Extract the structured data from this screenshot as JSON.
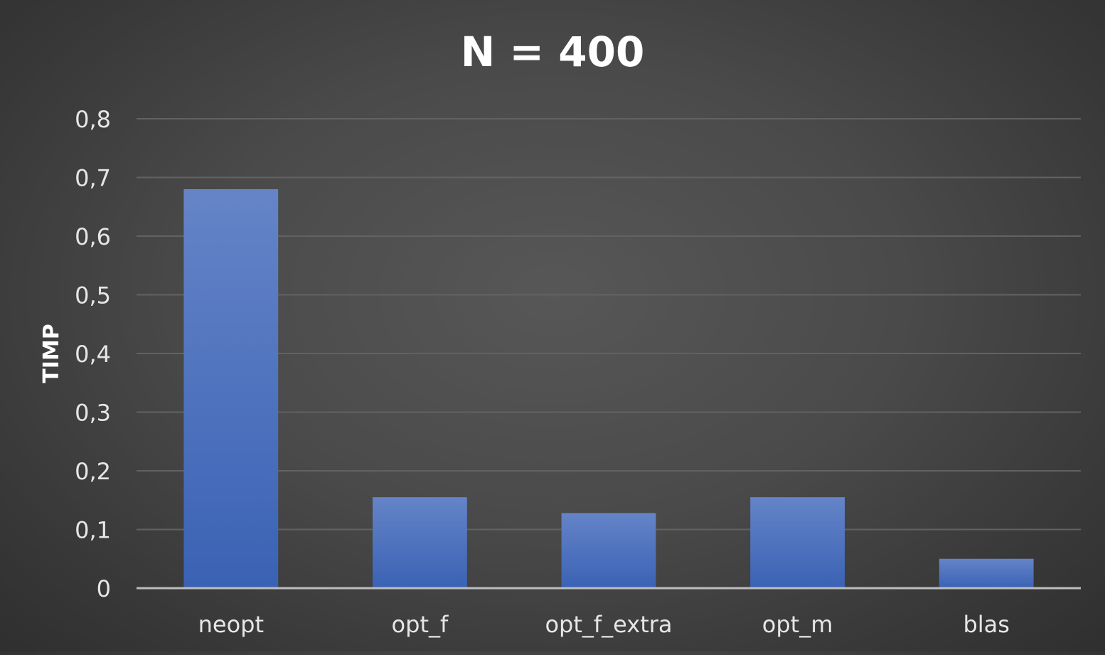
{
  "chart_data": {
    "type": "bar",
    "title": "N = 400",
    "xlabel": "",
    "ylabel": "TIMP",
    "categories": [
      "neopt",
      "opt_f",
      "opt_f_extra",
      "opt_m",
      "blas"
    ],
    "values": [
      0.68,
      0.155,
      0.128,
      0.155,
      0.05
    ],
    "ylim": [
      0,
      0.8
    ],
    "yticks": [
      0,
      0.1,
      0.2,
      0.3,
      0.4,
      0.5,
      0.6,
      0.7,
      0.8
    ],
    "ytick_labels": [
      "0",
      "0,1",
      "0,2",
      "0,3",
      "0,4",
      "0,5",
      "0,6",
      "0,7",
      "0,8"
    ],
    "grid": true,
    "legend": "none",
    "colors": {
      "bar_top": "#6584c8",
      "bar_bottom": "#3a62b4",
      "gridline": "#626262",
      "axis": "#bdbdbd",
      "text": "#ffffff",
      "tick_text": "#e6e6e6"
    }
  }
}
